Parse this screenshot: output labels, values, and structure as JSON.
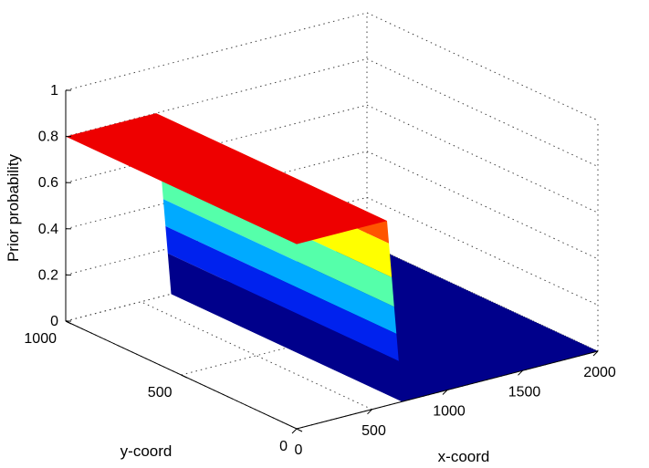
{
  "chart_data": {
    "type": "surface",
    "title": "",
    "xlabel": "x-coord",
    "ylabel": "y-coord",
    "zlabel": "Prior probability",
    "xlim": [
      0,
      2000
    ],
    "ylim": [
      0,
      1000
    ],
    "zlim": [
      0,
      1
    ],
    "x_ticks": [
      0,
      500,
      1000,
      1500,
      2000
    ],
    "y_ticks": [
      0,
      500,
      1000
    ],
    "z_ticks": [
      0,
      0.2,
      0.4,
      0.6,
      0.8,
      1
    ],
    "grid": true,
    "colormap": "jet",
    "surface": {
      "description_free": true,
      "high_plateau": {
        "x_range": [
          0,
          600
        ],
        "y_range": [
          0,
          1000
        ],
        "z": 0.8,
        "color": "#ee0000"
      },
      "low_plateau": {
        "x_range": [
          700,
          2000
        ],
        "y_range": [
          0,
          1000
        ],
        "z": 0.0,
        "color": "#00008b"
      },
      "transition_x": [
        600,
        700
      ],
      "transition_bands": [
        {
          "z_from": 0.8,
          "z_to": 0.7,
          "color": "#ff5500"
        },
        {
          "z_from": 0.7,
          "z_to": 0.55,
          "color": "#ffff00"
        },
        {
          "z_from": 0.55,
          "z_to": 0.42,
          "color": "#55ffaa"
        },
        {
          "z_from": 0.42,
          "z_to": 0.3,
          "color": "#00aaff"
        },
        {
          "z_from": 0.3,
          "z_to": 0.18,
          "color": "#0022ee"
        },
        {
          "z_from": 0.18,
          "z_to": 0.0,
          "color": "#00008b"
        }
      ]
    }
  }
}
